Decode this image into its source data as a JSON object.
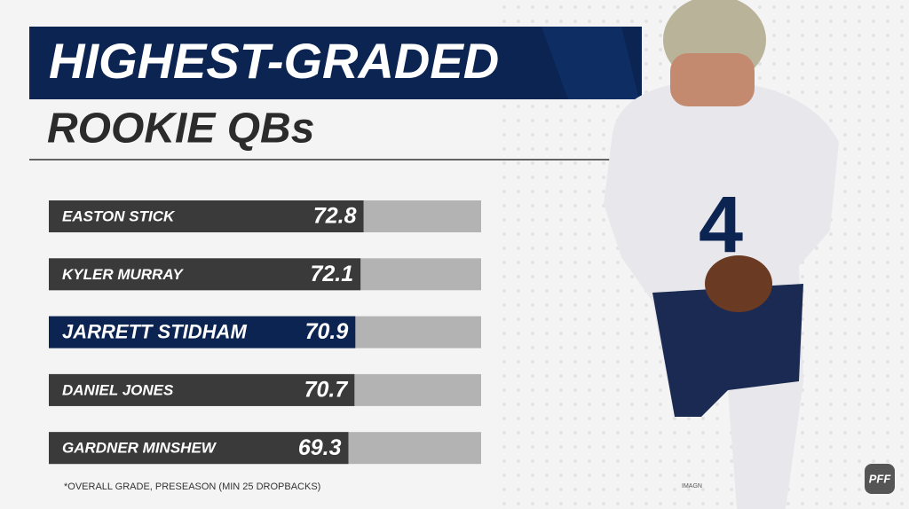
{
  "chart_data": {
    "type": "bar",
    "orientation": "horizontal",
    "title": "HIGHEST-GRADED",
    "subtitle": "ROOKIE QBs",
    "categories": [
      "EASTON STICK",
      "KYLER MURRAY",
      "JARRETT STIDHAM",
      "DANIEL JONES",
      "GARDNER MINSHEW"
    ],
    "values": [
      72.8,
      72.1,
      70.9,
      70.7,
      69.3
    ],
    "colors": [
      "#3a3a3a",
      "#3a3a3a",
      "#0b2452",
      "#3a3a3a",
      "#3a3a3a"
    ],
    "track_color": "#b3b3b3",
    "xlim": [
      0,
      100
    ],
    "footnote": "*OVERALL GRADE, PRESEASON (MIN 25 DROPBACKS)",
    "credit": "IMAGN",
    "logo": "PFF"
  }
}
